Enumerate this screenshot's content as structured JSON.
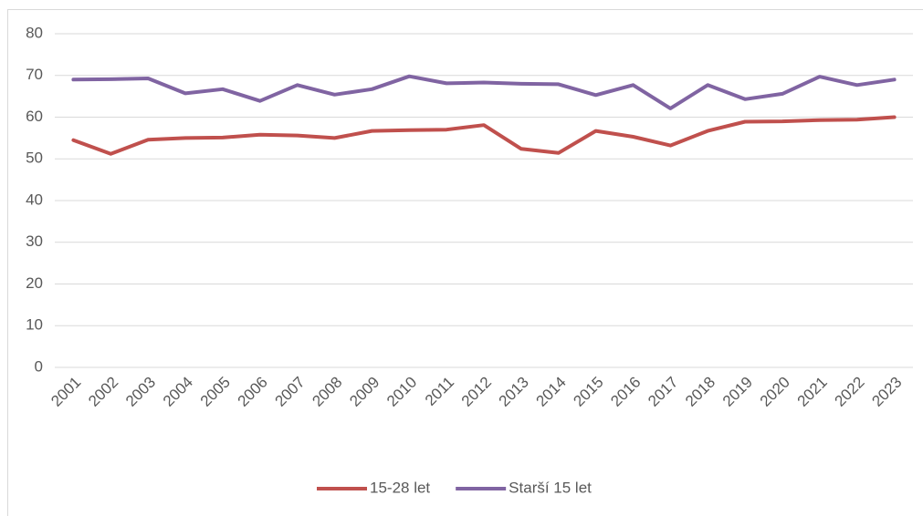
{
  "chart_data": {
    "type": "line",
    "categories": [
      "2001",
      "2002",
      "2003",
      "2004",
      "2005",
      "2006",
      "2007",
      "2008",
      "2009",
      "2010",
      "2011",
      "2012",
      "2013",
      "2014",
      "2015",
      "2016",
      "2017",
      "2018",
      "2019",
      "2020",
      "2021",
      "2022",
      "2023"
    ],
    "series": [
      {
        "name": "15-28 let",
        "color": "#c0504d",
        "values": [
          54.5,
          51.2,
          54.6,
          55,
          55.1,
          55.8,
          55.6,
          55,
          56.7,
          56.9,
          57,
          58.1,
          52.4,
          51.4,
          56.7,
          55.3,
          53.2,
          56.7,
          58.9,
          59,
          59.3,
          59.4,
          60
        ]
      },
      {
        "name": "Starší 15 let",
        "color": "#8064a2",
        "values": [
          69,
          69.1,
          69.3,
          65.7,
          66.7,
          63.9,
          67.7,
          65.4,
          66.7,
          69.8,
          68.1,
          68.3,
          68,
          67.9,
          65.3,
          67.7,
          62.1,
          67.7,
          64.3,
          65.6,
          69.7,
          67.7,
          69
        ]
      }
    ],
    "ylim": [
      0,
      80
    ],
    "yticks": [
      0,
      10,
      20,
      30,
      40,
      50,
      60,
      70,
      80
    ],
    "grid": true,
    "legend": "bottom"
  }
}
